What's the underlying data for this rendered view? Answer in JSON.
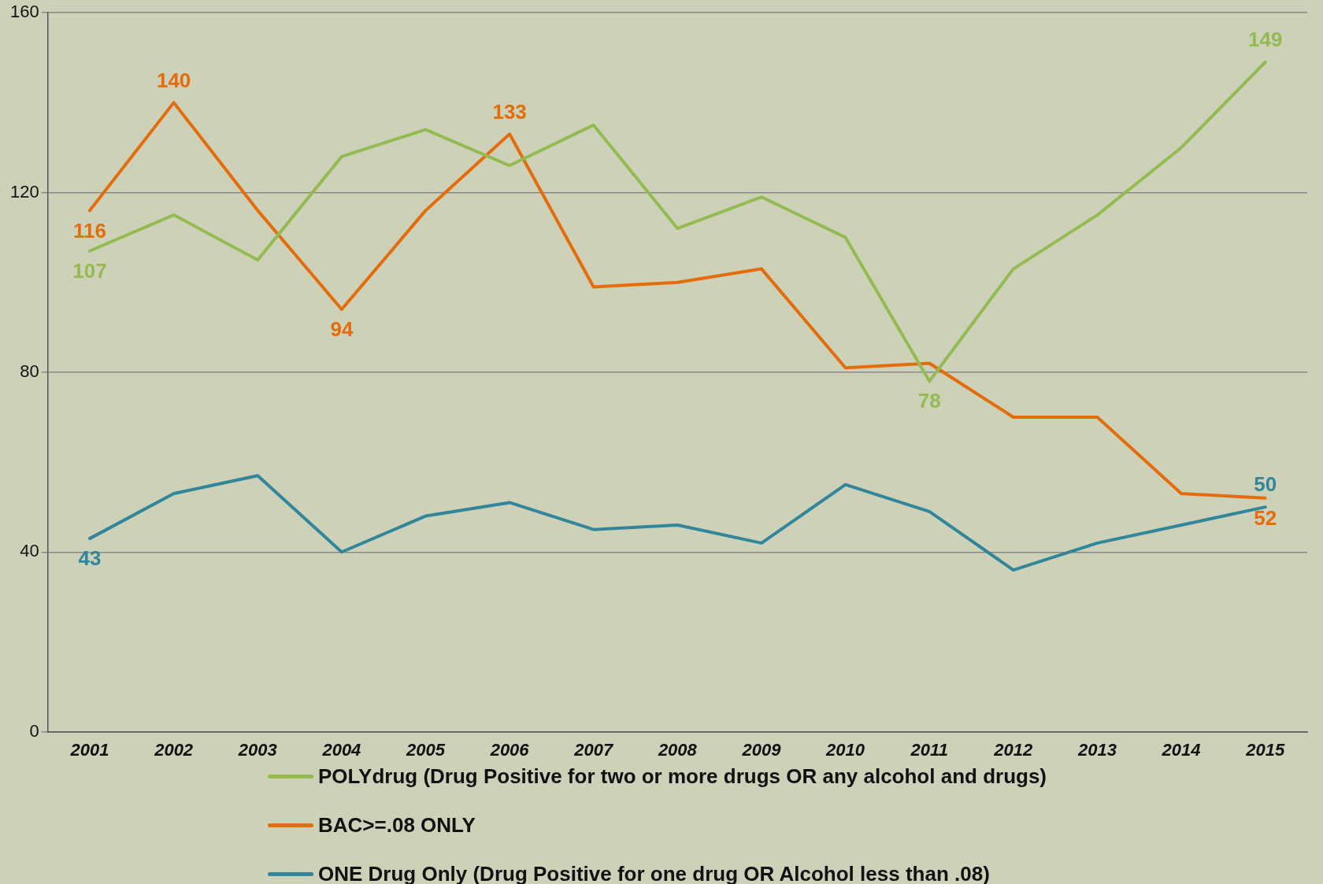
{
  "chart_data": {
    "type": "line",
    "categories": [
      "2001",
      "2002",
      "2003",
      "2004",
      "2005",
      "2006",
      "2007",
      "2008",
      "2009",
      "2010",
      "2011",
      "2012",
      "2013",
      "2014",
      "2015"
    ],
    "series": [
      {
        "name": "POLYdrug (Drug Positive for two or more drugs OR any alcohol and drugs)",
        "color": "#93bb52",
        "values": [
          107,
          115,
          105,
          128,
          134,
          126,
          135,
          112,
          119,
          110,
          78,
          103,
          115,
          130,
          149
        ],
        "value_labels": [
          "107",
          null,
          null,
          null,
          null,
          null,
          null,
          null,
          null,
          null,
          "78",
          null,
          null,
          null,
          "149"
        ]
      },
      {
        "name": "BAC>=.08 ONLY",
        "color": "#e46c0a",
        "values": [
          116,
          140,
          116,
          94,
          116,
          133,
          99,
          100,
          103,
          81,
          82,
          70,
          70,
          53,
          52
        ],
        "value_labels": [
          "116",
          "140",
          null,
          "94",
          null,
          "133",
          null,
          null,
          null,
          null,
          null,
          null,
          null,
          null,
          "52"
        ]
      },
      {
        "name": "ONE Drug Only (Drug Positive for one drug OR Alcohol less than .08)",
        "color": "#31869b",
        "values": [
          43,
          53,
          57,
          40,
          48,
          51,
          45,
          46,
          42,
          55,
          49,
          36,
          42,
          46,
          50
        ],
        "value_labels": [
          "43",
          null,
          null,
          null,
          null,
          null,
          null,
          null,
          null,
          null,
          null,
          null,
          null,
          null,
          "50"
        ]
      }
    ],
    "ylim": [
      0,
      160
    ],
    "yticks": [
      0,
      40,
      80,
      120,
      160
    ],
    "grid": "y",
    "legend": "bottom",
    "marker": "none",
    "line_style": "solid"
  }
}
